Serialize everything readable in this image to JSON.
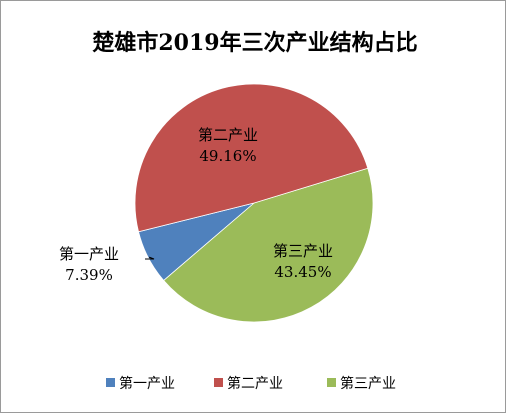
{
  "chart_data": {
    "type": "pie",
    "title": "楚雄市2019年三次产业结构占比",
    "categories": [
      "第一产业",
      "第二产业",
      "第三产业"
    ],
    "values": [
      7.39,
      49.16,
      43.45
    ],
    "value_labels": [
      "7.39%",
      "49.16%",
      "43.45%"
    ],
    "colors": [
      "#4f81bd",
      "#c0504d",
      "#9bbb59"
    ],
    "legend": {
      "position": "bottom",
      "items": [
        {
          "label": "第一产业",
          "color": "#4f81bd"
        },
        {
          "label": "第二产业",
          "color": "#c0504d"
        },
        {
          "label": "第三产业",
          "color": "#9bbb59"
        }
      ]
    }
  }
}
